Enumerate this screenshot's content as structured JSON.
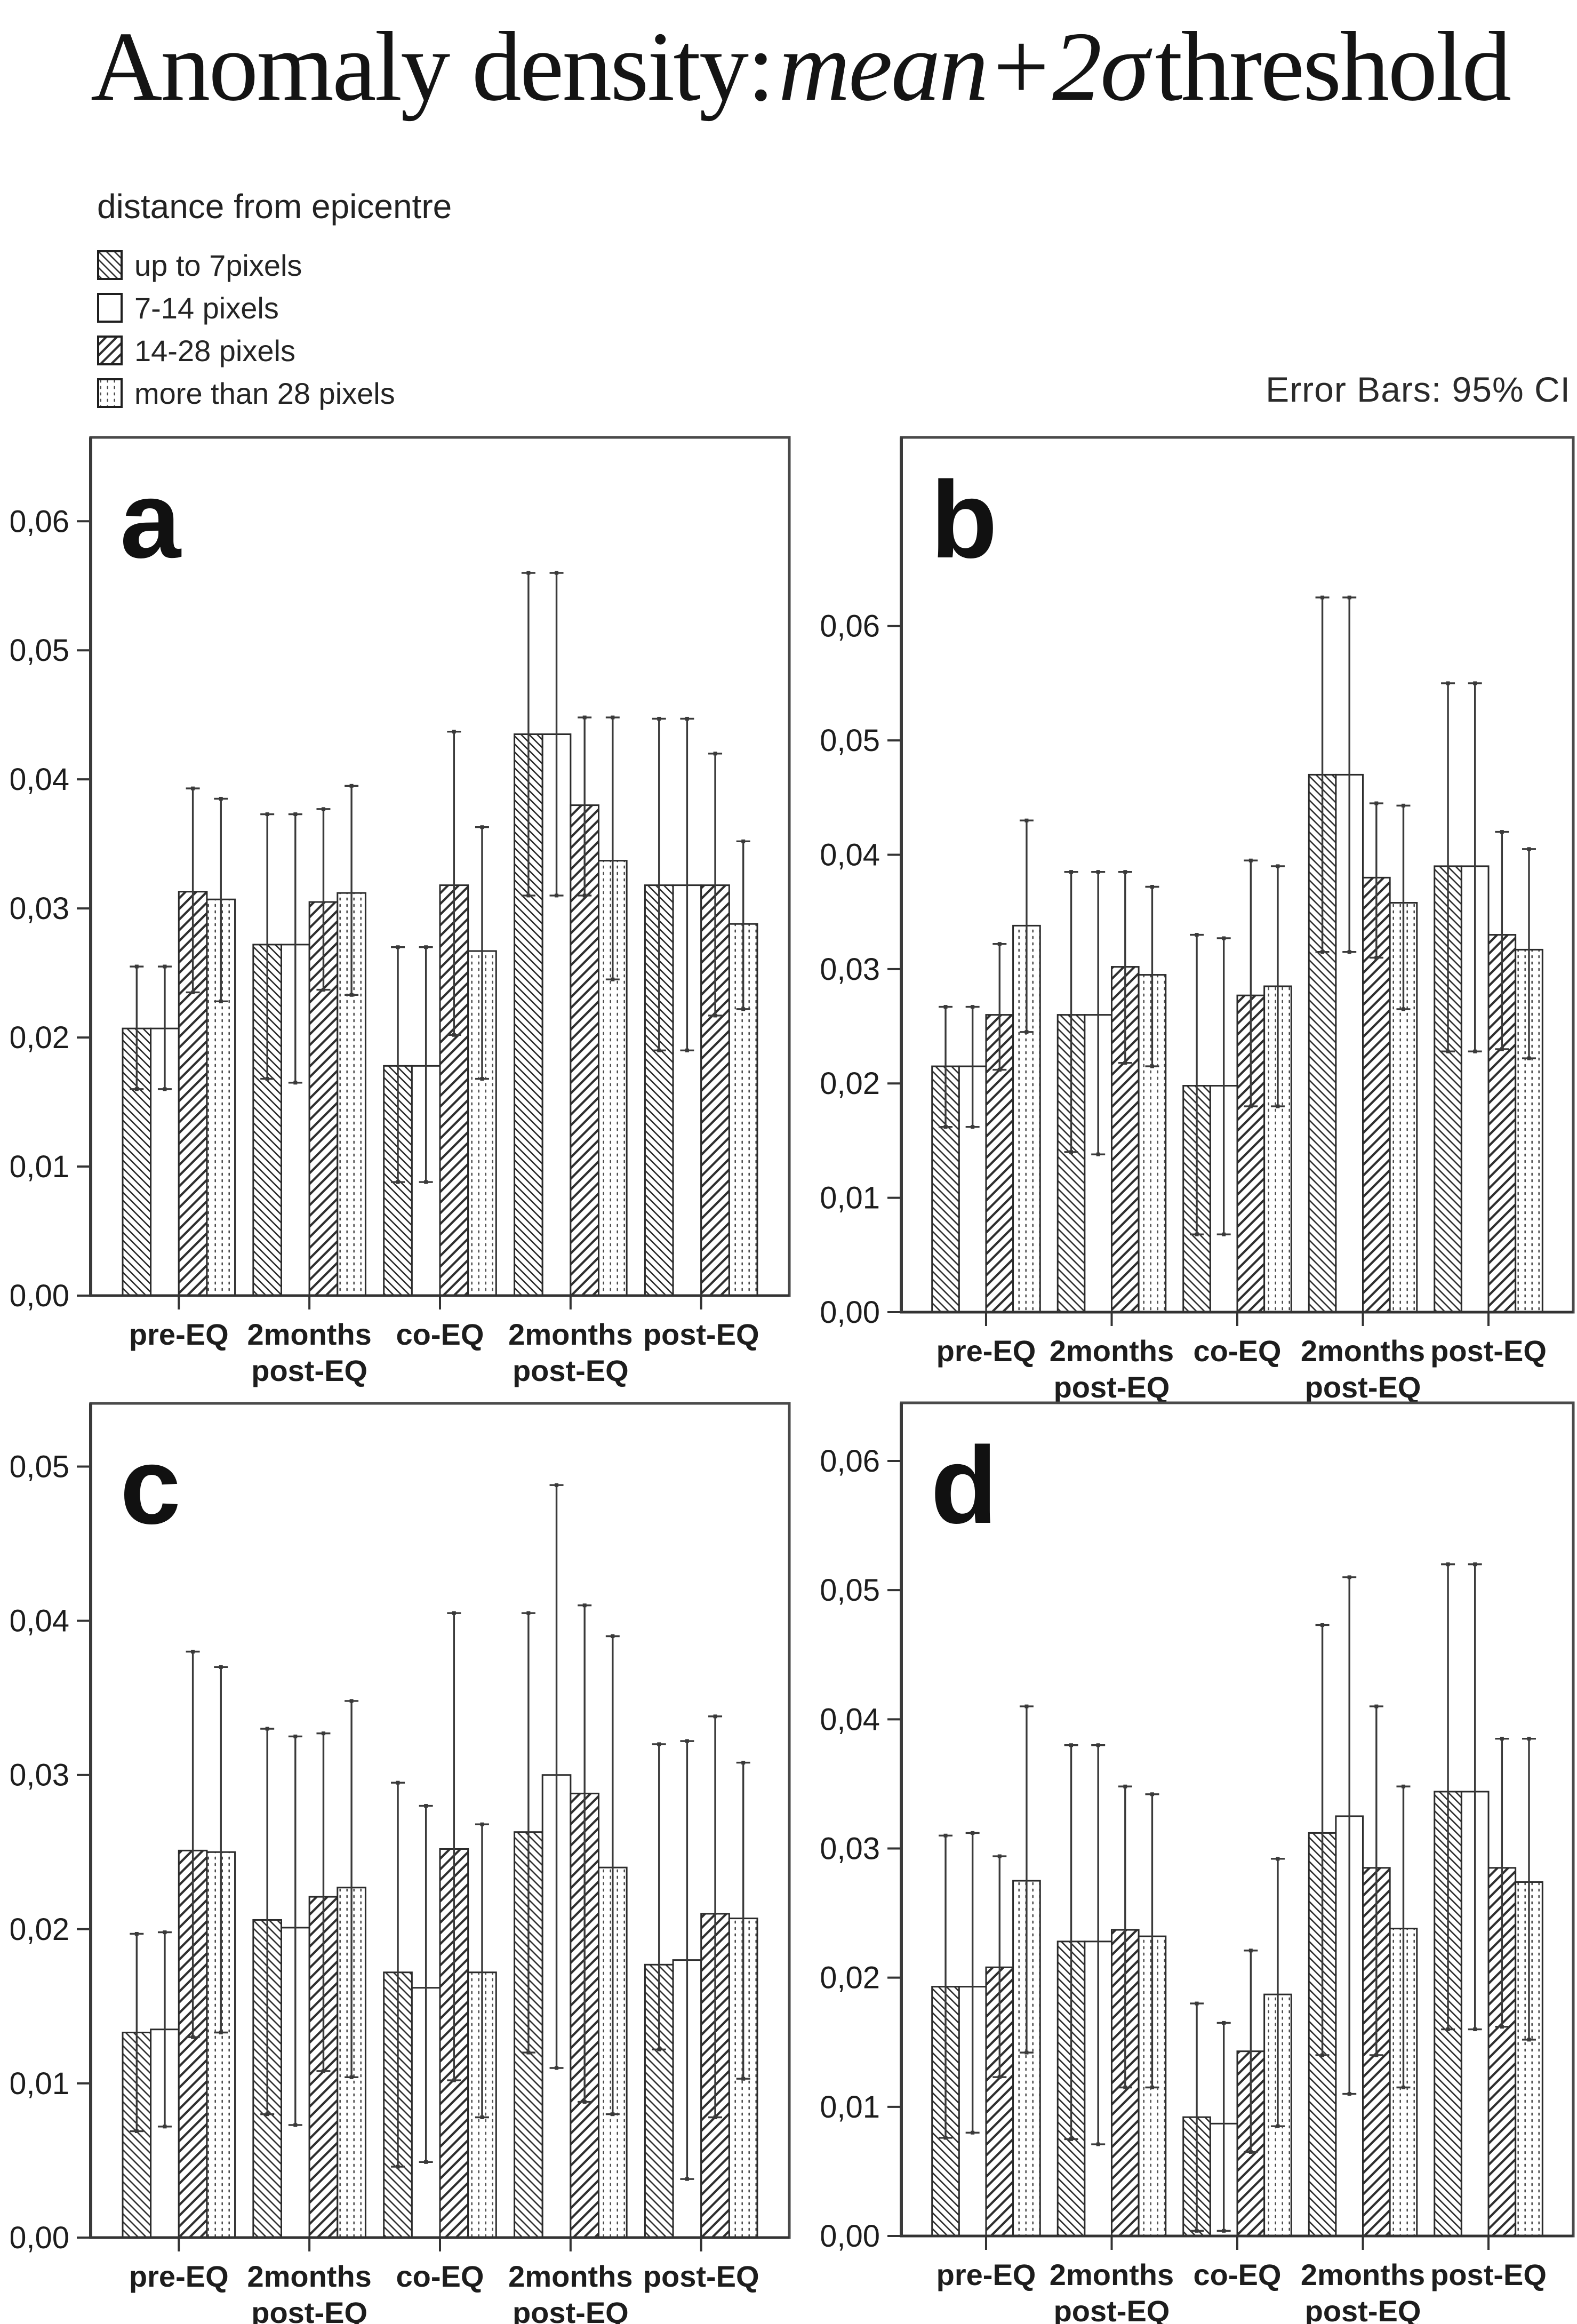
{
  "title": {
    "prefix": "Anomaly density:",
    "italic": "mean+2σ",
    "suffix": "threshold"
  },
  "legend": {
    "title": "distance from epicentre",
    "items": [
      {
        "label": "up to 7pixels",
        "pattern": "backslash-hatch"
      },
      {
        "label": "7-14 pixels",
        "pattern": "plain"
      },
      {
        "label": "14-28 pixels",
        "pattern": "slash-hatch"
      },
      {
        "label": "more than 28 pixels",
        "pattern": "dotted"
      }
    ]
  },
  "error_note": "Error Bars: 95% CI",
  "colors": {
    "ink": "#1d1d1d",
    "frame": "#4a4a4a",
    "axis": "#333333",
    "bar_stroke": "#2b2b2b",
    "error": "#3a3a3a",
    "background": "#ffffff"
  },
  "axis_format": "comma-decimal",
  "chart_data": [
    {
      "panel": "a",
      "type": "bar",
      "categories": [
        [
          "pre-EQ"
        ],
        [
          "2months",
          "post-EQ"
        ],
        [
          "co-EQ"
        ],
        [
          "2months",
          "post-EQ"
        ],
        [
          "post-EQ"
        ]
      ],
      "ylim": [
        0,
        0.0665
      ],
      "yticks": [
        0,
        0.01,
        0.02,
        0.03,
        0.04,
        0.05,
        0.06
      ],
      "grid": false,
      "legend_position": "top-left-page",
      "series": [
        {
          "name": "up to 7pixels",
          "pattern": "backslash-hatch",
          "values": [
            0.0207,
            0.0272,
            0.0178,
            0.0435,
            0.0318
          ],
          "ci_low": [
            0.016,
            0.0168,
            0.0088,
            0.031,
            0.019
          ],
          "ci_high": [
            0.0255,
            0.0373,
            0.027,
            0.056,
            0.0447
          ]
        },
        {
          "name": "7-14 pixels",
          "pattern": "plain",
          "values": [
            0.0207,
            0.0272,
            0.0178,
            0.0435,
            0.0318
          ],
          "ci_low": [
            0.016,
            0.0165,
            0.0088,
            0.031,
            0.019
          ],
          "ci_high": [
            0.0255,
            0.0373,
            0.027,
            0.056,
            0.0447
          ]
        },
        {
          "name": "14-28 pixels",
          "pattern": "slash-hatch",
          "values": [
            0.0313,
            0.0305,
            0.0318,
            0.038,
            0.0318
          ],
          "ci_low": [
            0.0235,
            0.0237,
            0.0202,
            0.031,
            0.0217
          ],
          "ci_high": [
            0.0393,
            0.0377,
            0.0437,
            0.0448,
            0.042
          ]
        },
        {
          "name": "more than 28 pixels",
          "pattern": "dotted",
          "values": [
            0.0307,
            0.0312,
            0.0267,
            0.0337,
            0.0288
          ],
          "ci_low": [
            0.0228,
            0.0233,
            0.0168,
            0.0245,
            0.0222
          ],
          "ci_high": [
            0.0385,
            0.0395,
            0.0363,
            0.0448,
            0.0352
          ]
        }
      ]
    },
    {
      "panel": "b",
      "type": "bar",
      "categories": [
        [
          "pre-EQ"
        ],
        [
          "2months",
          "post-EQ"
        ],
        [
          "co-EQ"
        ],
        [
          "2months",
          "post-EQ"
        ],
        [
          "post-EQ"
        ]
      ],
      "ylim": [
        0,
        0.0765
      ],
      "yticks": [
        0,
        0.01,
        0.02,
        0.03,
        0.04,
        0.05,
        0.06
      ],
      "grid": false,
      "series": [
        {
          "name": "up to 7pixels",
          "pattern": "backslash-hatch",
          "values": [
            0.0215,
            0.026,
            0.0198,
            0.047,
            0.039
          ],
          "ci_low": [
            0.0162,
            0.014,
            0.0068,
            0.0315,
            0.0228
          ],
          "ci_high": [
            0.0267,
            0.0385,
            0.033,
            0.0625,
            0.055
          ]
        },
        {
          "name": "7-14 pixels",
          "pattern": "plain",
          "values": [
            0.0215,
            0.026,
            0.0198,
            0.047,
            0.039
          ],
          "ci_low": [
            0.0162,
            0.0138,
            0.0068,
            0.0315,
            0.0228
          ],
          "ci_high": [
            0.0267,
            0.0385,
            0.0327,
            0.0625,
            0.055
          ]
        },
        {
          "name": "14-28 pixels",
          "pattern": "slash-hatch",
          "values": [
            0.026,
            0.0302,
            0.0277,
            0.038,
            0.033
          ],
          "ci_low": [
            0.0212,
            0.0218,
            0.018,
            0.031,
            0.023
          ],
          "ci_high": [
            0.0322,
            0.0385,
            0.0395,
            0.0445,
            0.042
          ]
        },
        {
          "name": "more than 28 pixels",
          "pattern": "dotted",
          "values": [
            0.0338,
            0.0295,
            0.0285,
            0.0358,
            0.0317
          ],
          "ci_low": [
            0.0245,
            0.0215,
            0.018,
            0.0265,
            0.0222
          ],
          "ci_high": [
            0.043,
            0.0372,
            0.039,
            0.0443,
            0.0405
          ]
        }
      ]
    },
    {
      "panel": "c",
      "type": "bar",
      "categories": [
        [
          "pre-EQ"
        ],
        [
          "2months",
          "post-EQ"
        ],
        [
          "co-EQ"
        ],
        [
          "2months",
          "post-EQ"
        ],
        [
          "post-EQ"
        ]
      ],
      "ylim": [
        0,
        0.0541
      ],
      "yticks": [
        0,
        0.01,
        0.02,
        0.03,
        0.04,
        0.05
      ],
      "grid": false,
      "series": [
        {
          "name": "up to 7pixels",
          "pattern": "backslash-hatch",
          "values": [
            0.0133,
            0.0206,
            0.0172,
            0.0263,
            0.0177
          ],
          "ci_low": [
            0.0069,
            0.008,
            0.0046,
            0.012,
            0.0122
          ],
          "ci_high": [
            0.0197,
            0.033,
            0.0295,
            0.0405,
            0.032
          ]
        },
        {
          "name": "7-14 pixels",
          "pattern": "plain",
          "values": [
            0.0135,
            0.0201,
            0.0162,
            0.03,
            0.018
          ],
          "ci_low": [
            0.0072,
            0.0073,
            0.0049,
            0.011,
            0.0038
          ],
          "ci_high": [
            0.0198,
            0.0325,
            0.028,
            0.0488,
            0.0322
          ]
        },
        {
          "name": "14-28 pixels",
          "pattern": "slash-hatch",
          "values": [
            0.0251,
            0.0221,
            0.0252,
            0.0288,
            0.021
          ],
          "ci_low": [
            0.013,
            0.0108,
            0.0102,
            0.0088,
            0.0078
          ],
          "ci_high": [
            0.038,
            0.0327,
            0.0405,
            0.041,
            0.0338
          ]
        },
        {
          "name": "more than 28 pixels",
          "pattern": "dotted",
          "values": [
            0.025,
            0.0227,
            0.0172,
            0.024,
            0.0207
          ],
          "ci_low": [
            0.0133,
            0.0104,
            0.0078,
            0.008,
            0.0103
          ],
          "ci_high": [
            0.037,
            0.0348,
            0.0268,
            0.039,
            0.0308
          ]
        }
      ]
    },
    {
      "panel": "d",
      "type": "bar",
      "categories": [
        [
          "pre-EQ"
        ],
        [
          "2months",
          "post-EQ"
        ],
        [
          "co-EQ"
        ],
        [
          "2months",
          "post-EQ"
        ],
        [
          "post-EQ"
        ]
      ],
      "ylim": [
        0,
        0.0645
      ],
      "yticks": [
        0,
        0.01,
        0.02,
        0.03,
        0.04,
        0.05,
        0.06
      ],
      "grid": false,
      "series": [
        {
          "name": "up to 7pixels",
          "pattern": "backslash-hatch",
          "values": [
            0.0193,
            0.0228,
            0.0092,
            0.0312,
            0.0344
          ],
          "ci_low": [
            0.0076,
            0.0075,
            0.0004,
            0.014,
            0.016
          ],
          "ci_high": [
            0.031,
            0.038,
            0.018,
            0.0473,
            0.052
          ]
        },
        {
          "name": "7-14 pixels",
          "pattern": "plain",
          "values": [
            0.0193,
            0.0228,
            0.0087,
            0.0325,
            0.0344
          ],
          "ci_low": [
            0.008,
            0.0071,
            0.0004,
            0.011,
            0.016
          ],
          "ci_high": [
            0.0312,
            0.038,
            0.0165,
            0.051,
            0.052
          ]
        },
        {
          "name": "14-28 pixels",
          "pattern": "slash-hatch",
          "values": [
            0.0208,
            0.0237,
            0.0143,
            0.0285,
            0.0285
          ],
          "ci_low": [
            0.0123,
            0.0115,
            0.0065,
            0.014,
            0.0162
          ],
          "ci_high": [
            0.0294,
            0.0348,
            0.0221,
            0.041,
            0.0385
          ]
        },
        {
          "name": "more than 28 pixels",
          "pattern": "dotted",
          "values": [
            0.0275,
            0.0232,
            0.0187,
            0.0238,
            0.0274
          ],
          "ci_low": [
            0.0142,
            0.0115,
            0.0085,
            0.0115,
            0.0152
          ],
          "ci_high": [
            0.041,
            0.0342,
            0.0292,
            0.0348,
            0.0385
          ]
        }
      ]
    }
  ]
}
